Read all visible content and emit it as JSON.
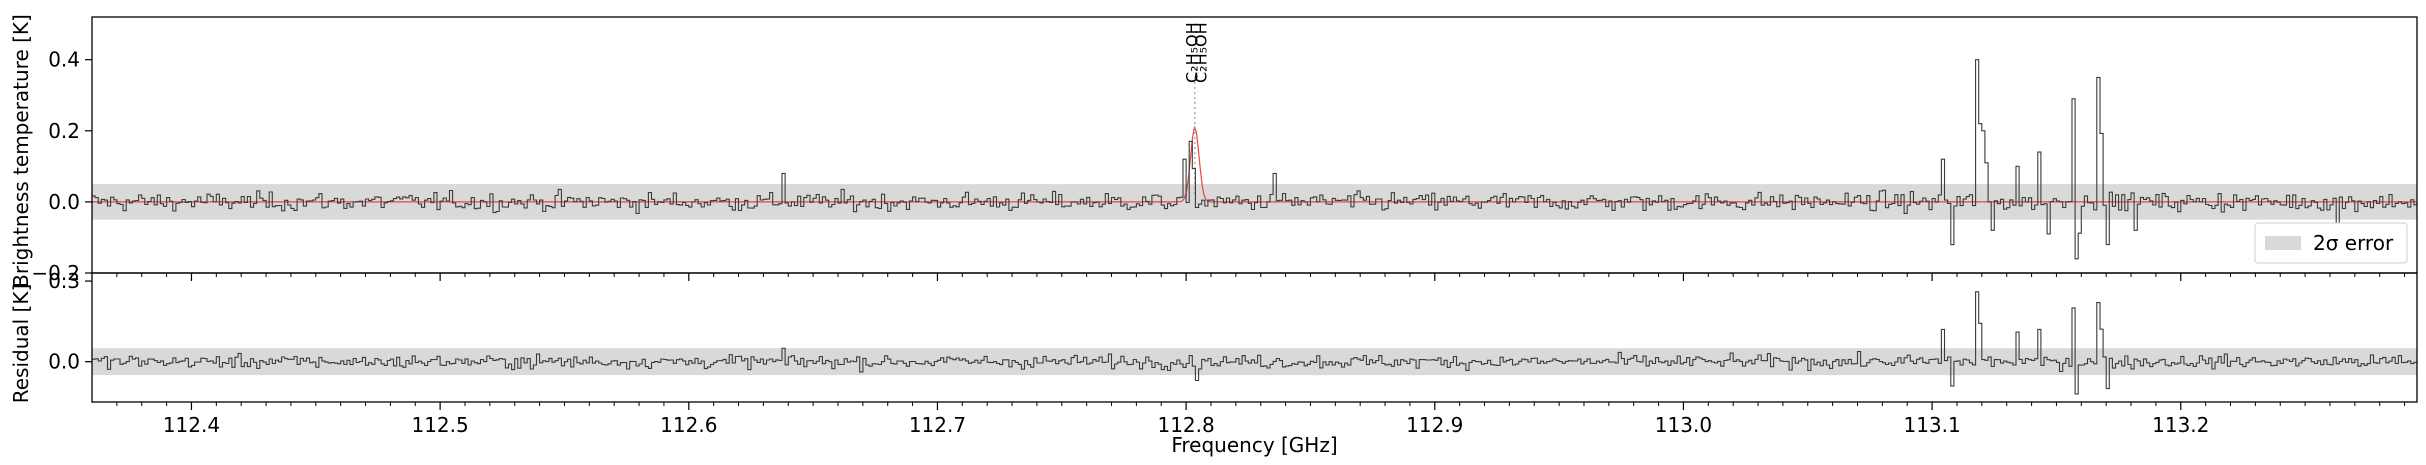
{
  "chart_data": [
    {
      "type": "line",
      "panel": "top",
      "ylabel": "Brightness temperature [K]",
      "xlim": [
        112.36,
        113.295
      ],
      "ylim": [
        -0.2,
        0.52
      ],
      "yticks": [
        -0.2,
        0.0,
        0.2,
        0.4
      ],
      "ytick_labels": [
        "−0.2",
        "0.0",
        "0.2",
        "0.4"
      ],
      "grid": false,
      "legend": {
        "placement": "lower-right",
        "entries": [
          {
            "label": "2σ error",
            "color": "#d9d9d9"
          }
        ]
      },
      "error_band": [
        -0.05,
        0.05
      ],
      "colors": {
        "observed": "#3a3a3a",
        "model": "#e8473e",
        "band": "#d9d9d9"
      },
      "series": [
        {
          "kind": "observed-spectrum",
          "noise_sigma": 0.018,
          "features": [
            {
              "x": 112.637,
              "y": 0.08
            },
            {
              "x": 112.799,
              "y": 0.12
            },
            {
              "x": 112.801,
              "y": 0.17
            },
            {
              "x": 112.835,
              "y": 0.08
            },
            {
              "x": 113.104,
              "y": 0.12
            },
            {
              "x": 113.108,
              "y": -0.12
            },
            {
              "x": 113.117,
              "y": 0.4
            },
            {
              "x": 113.12,
              "y": 0.2
            },
            {
              "x": 113.124,
              "y": -0.08
            },
            {
              "x": 113.134,
              "y": 0.1
            },
            {
              "x": 113.142,
              "y": 0.14
            },
            {
              "x": 113.146,
              "y": -0.09
            },
            {
              "x": 113.156,
              "y": 0.29
            },
            {
              "x": 113.158,
              "y": -0.16
            },
            {
              "x": 113.166,
              "y": 0.35
            },
            {
              "x": 113.17,
              "y": -0.12
            },
            {
              "x": 113.181,
              "y": -0.08
            },
            {
              "x": 113.263,
              "y": -0.1
            }
          ]
        },
        {
          "kind": "model",
          "peak_x": 112.8035,
          "peak_y": 0.21,
          "width": 0.0017
        }
      ],
      "annotations": [
        {
          "text": "C₂H₅OH",
          "x": 112.8025
        },
        {
          "text": "C₂H₅OH",
          "x": 112.8045
        }
      ]
    },
    {
      "type": "line",
      "panel": "bottom",
      "xlabel": "Frequency [GHz]",
      "ylabel": "Residual [K]",
      "xlim": [
        112.36,
        113.295
      ],
      "ylim": [
        -0.15,
        0.33
      ],
      "yticks": [
        0.0,
        0.3
      ],
      "ytick_labels": [
        "0.0",
        "0.3"
      ],
      "xticks": [
        112.4,
        112.5,
        112.6,
        112.7,
        112.8,
        112.9,
        113.0,
        113.1,
        113.2
      ],
      "xtick_labels": [
        "112.4",
        "112.5",
        "112.6",
        "112.7",
        "112.8",
        "112.9",
        "113.0",
        "113.1",
        "113.2"
      ],
      "error_band": [
        -0.05,
        0.05
      ],
      "series": [
        {
          "kind": "residual",
          "noise_sigma": 0.017,
          "features": [
            {
              "x": 112.637,
              "y": 0.05
            },
            {
              "x": 112.804,
              "y": -0.07
            },
            {
              "x": 113.104,
              "y": 0.12
            },
            {
              "x": 113.108,
              "y": -0.09
            },
            {
              "x": 113.117,
              "y": 0.26
            },
            {
              "x": 113.134,
              "y": 0.11
            },
            {
              "x": 113.142,
              "y": 0.12
            },
            {
              "x": 113.156,
              "y": 0.2
            },
            {
              "x": 113.158,
              "y": -0.12
            },
            {
              "x": 113.166,
              "y": 0.22
            },
            {
              "x": 113.17,
              "y": -0.1
            }
          ]
        }
      ]
    }
  ]
}
